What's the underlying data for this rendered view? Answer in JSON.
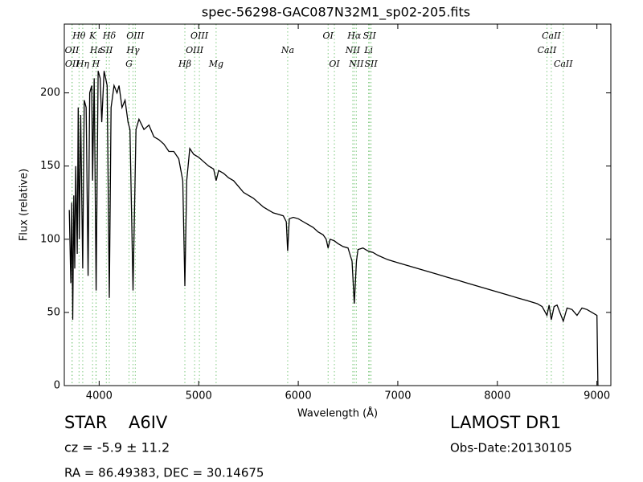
{
  "chart_data": {
    "type": "line",
    "title": "spec-56298-GAC087N32M1_sp02-205.fits",
    "xlabel": "Wavelength (Å)",
    "ylabel": "Flux (relative)",
    "xlim": [
      3650,
      9140
    ],
    "ylim": [
      0,
      247
    ],
    "xticks": [
      4000,
      5000,
      6000,
      7000,
      8000,
      9000
    ],
    "yticks": [
      0,
      50,
      100,
      150,
      200
    ],
    "color": "#000000",
    "line_color": "#7fc97f",
    "x": [
      3700,
      3715,
      3725,
      3735,
      3745,
      3755,
      3765,
      3780,
      3790,
      3800,
      3815,
      3835,
      3850,
      3870,
      3889,
      3905,
      3925,
      3934,
      3950,
      3970,
      3990,
      4010,
      4026,
      4050,
      4080,
      4102,
      4120,
      4150,
      4180,
      4200,
      4230,
      4260,
      4290,
      4310,
      4340,
      4370,
      4400,
      4450,
      4500,
      4550,
      4600,
      4650,
      4700,
      4750,
      4800,
      4840,
      4861,
      4880,
      4910,
      4950,
      5000,
      5050,
      5100,
      5150,
      5175,
      5200,
      5250,
      5300,
      5350,
      5400,
      5450,
      5500,
      5550,
      5600,
      5650,
      5700,
      5750,
      5800,
      5850,
      5880,
      5894,
      5910,
      5950,
      6000,
      6050,
      6100,
      6150,
      6200,
      6250,
      6280,
      6300,
      6320,
      6360,
      6400,
      6450,
      6500,
      6540,
      6563,
      6585,
      6600,
      6650,
      6700,
      6750,
      6800,
      6900,
      7000,
      7100,
      7200,
      7300,
      7400,
      7500,
      7600,
      7700,
      7800,
      7900,
      8000,
      8100,
      8200,
      8300,
      8400,
      8450,
      8498,
      8520,
      8542,
      8570,
      8600,
      8662,
      8700,
      8750,
      8800,
      8850,
      8900,
      8950,
      9000,
      9010,
      9020
    ],
    "values": [
      120,
      70,
      125,
      45,
      130,
      80,
      150,
      90,
      190,
      100,
      185,
      80,
      195,
      190,
      75,
      200,
      205,
      140,
      210,
      65,
      215,
      210,
      180,
      215,
      205,
      60,
      190,
      205,
      200,
      205,
      190,
      195,
      180,
      175,
      65,
      175,
      182,
      175,
      178,
      170,
      168,
      165,
      160,
      160,
      155,
      140,
      68,
      140,
      162,
      158,
      156,
      153,
      150,
      148,
      140,
      147,
      145,
      142,
      140,
      136,
      132,
      130,
      128,
      125,
      122,
      120,
      118,
      117,
      116,
      112,
      92,
      114,
      115,
      114,
      112,
      110,
      108,
      105,
      103,
      100,
      94,
      100,
      99,
      97,
      95,
      94,
      85,
      56,
      85,
      93,
      94,
      92,
      91,
      89,
      86,
      84,
      82,
      80,
      78,
      76,
      74,
      72,
      70,
      68,
      66,
      64,
      62,
      60,
      58,
      56,
      54,
      48,
      55,
      45,
      54,
      55,
      44,
      53,
      52,
      48,
      53,
      52,
      50,
      48,
      0,
      0
    ],
    "lines": [
      {
        "label": "Hθ",
        "wavelength": 3798
      },
      {
        "label": "OII",
        "wavelength": 3727
      },
      {
        "label": "OII",
        "wavelength": 3729
      },
      {
        "label": "Hη",
        "wavelength": 3835
      },
      {
        "label": "K",
        "wavelength": 3934
      },
      {
        "label": "Hε",
        "wavelength": 3970
      },
      {
        "label": "H",
        "wavelength": 3968
      },
      {
        "label": "SII",
        "wavelength": 4072
      },
      {
        "label": "Hδ",
        "wavelength": 4102
      },
      {
        "label": "G",
        "wavelength": 4300
      },
      {
        "label": "Hγ",
        "wavelength": 4340
      },
      {
        "label": "OIII",
        "wavelength": 4363
      },
      {
        "label": "Hβ",
        "wavelength": 4861
      },
      {
        "label": "OIII",
        "wavelength": 4959
      },
      {
        "label": "OIII",
        "wavelength": 5007
      },
      {
        "label": "Mg",
        "wavelength": 5175
      },
      {
        "label": "Na",
        "wavelength": 5894
      },
      {
        "label": "OI",
        "wavelength": 6300
      },
      {
        "label": "OI",
        "wavelength": 6363
      },
      {
        "label": "NII",
        "wavelength": 6548
      },
      {
        "label": "Hα",
        "wavelength": 6563
      },
      {
        "label": "NII",
        "wavelength": 6583
      },
      {
        "label": "Li",
        "wavelength": 6707
      },
      {
        "label": "SII",
        "wavelength": 6716
      },
      {
        "label": "SII",
        "wavelength": 6731
      },
      {
        "label": "CaII",
        "wavelength": 8498
      },
      {
        "label": "CaII",
        "wavelength": 8542
      },
      {
        "label": "CaII",
        "wavelength": 8662
      }
    ],
    "info": {
      "class": "STAR",
      "subclass": "A6IV",
      "cz": "cz = -5.9 ± 11.2",
      "coords": "RA = 86.49383, DEC = 30.14675",
      "survey": "LAMOST DR1",
      "date": "Obs-Date:20130105"
    }
  }
}
